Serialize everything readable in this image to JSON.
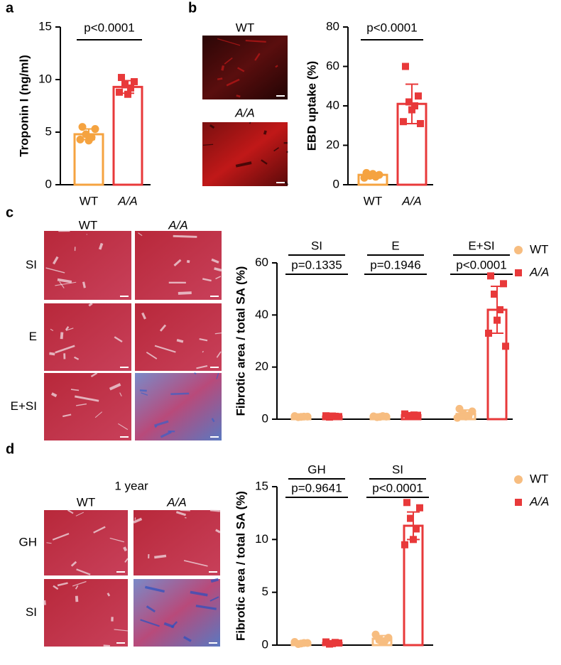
{
  "figure": {
    "panel_letters": [
      "a",
      "b",
      "c",
      "d"
    ],
    "b_images": [
      "WT",
      "A/A"
    ],
    "c_images": {
      "columns": [
        "WT",
        "A/A"
      ],
      "rows": [
        "SI",
        "E",
        "E+SI"
      ]
    },
    "d_images": {
      "title": "1 year",
      "columns": [
        "WT",
        "A/A"
      ],
      "rows": [
        "GH",
        "SI"
      ]
    }
  },
  "chart_data": [
    {
      "type": "bar",
      "ylabel": "Troponin I (ng/ml)",
      "annotation": "p<0.0001",
      "categories": [
        "WT",
        "A/A"
      ],
      "colors": [
        "#f5a340",
        "#e8393a"
      ],
      "values": [
        4.8,
        9.3
      ],
      "errors": [
        0.5,
        0.6
      ],
      "points": [
        [
          5.5,
          5.3,
          4.8,
          4.5,
          4.2,
          4.3
        ],
        [
          10.2,
          9.8,
          9.5,
          9.2,
          8.6,
          8.8
        ]
      ],
      "ylim": [
        0,
        15
      ],
      "yticks": [
        0,
        5,
        10,
        15
      ]
    },
    {
      "type": "bar",
      "ylabel": "EBD uptake (%)",
      "annotation": "p<0.0001",
      "categories": [
        "WT",
        "A/A"
      ],
      "colors": [
        "#f5a340",
        "#e8393a"
      ],
      "values": [
        5,
        41
      ],
      "errors": [
        1,
        10
      ],
      "points": [
        [
          6,
          5,
          4.5,
          4,
          5.5,
          3.5
        ],
        [
          60,
          45,
          42,
          40,
          38,
          32,
          31
        ]
      ],
      "ylim": [
        0,
        80
      ],
      "yticks": [
        0,
        20,
        40,
        60,
        80
      ]
    },
    {
      "type": "grouped-bar",
      "ylabel": "Fibrotic area / total SA (%)",
      "categories": [
        "SI",
        "E",
        "E+SI"
      ],
      "annotations": [
        "p=0.1335",
        "p=0.1946",
        "p<0.0001"
      ],
      "series": [
        {
          "name": "WT",
          "color": "#f7bd80",
          "values": [
            1,
            1,
            2
          ],
          "errors": [
            0.2,
            0.2,
            1.5
          ],
          "points": [
            [
              1.2,
              1,
              0.8,
              1,
              0.9
            ],
            [
              1.1,
              1,
              0.8,
              1.2,
              0.9
            ],
            [
              4,
              3,
              2,
              1.5,
              1,
              0.5
            ]
          ]
        },
        {
          "name": "A/A",
          "color": "#e8393a",
          "values": [
            1,
            1.5,
            42
          ],
          "errors": [
            0.3,
            0.5,
            9
          ],
          "points": [
            [
              1.3,
              1,
              0.8,
              1.1,
              1.2
            ],
            [
              2,
              1.5,
              1.2,
              1.6,
              1.4
            ],
            [
              55,
              52,
              48,
              42,
              38,
              33,
              28
            ]
          ]
        }
      ],
      "ylim": [
        0,
        60
      ],
      "yticks": [
        0,
        20,
        40,
        60
      ]
    },
    {
      "type": "grouped-bar",
      "ylabel": "Fibrotic area / total SA (%)",
      "categories": [
        "GH",
        "SI"
      ],
      "annotations": [
        "p=0.9641",
        "p<0.0001"
      ],
      "series": [
        {
          "name": "WT",
          "color": "#f7bd80",
          "values": [
            0.2,
            0.6
          ],
          "errors": [
            0.1,
            0.3
          ],
          "points": [
            [
              0.3,
              0.2,
              0.1,
              0.2,
              0.15
            ],
            [
              1,
              0.7,
              0.5,
              0.4,
              0.3
            ]
          ]
        },
        {
          "name": "A/A",
          "color": "#e8393a",
          "values": [
            0.2,
            11.3
          ],
          "errors": [
            0.1,
            1.3
          ],
          "points": [
            [
              0.3,
              0.2,
              0.1,
              0.25,
              0.15
            ],
            [
              13.5,
              13,
              12,
              11,
              10,
              9.5
            ]
          ]
        }
      ],
      "ylim": [
        0,
        15
      ],
      "yticks": [
        0,
        5,
        10,
        15
      ]
    }
  ]
}
